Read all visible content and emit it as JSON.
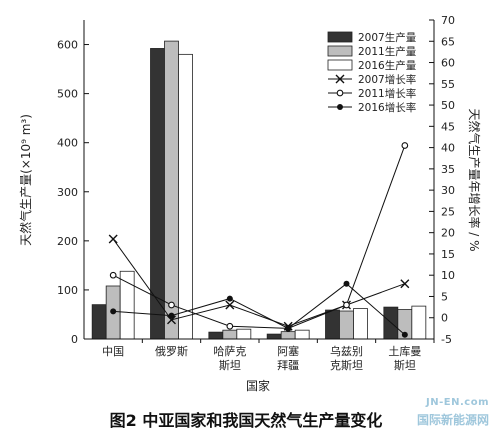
{
  "caption": "图2  中亚国家和我国天然气生产量变化",
  "watermark": {
    "top": "JN-EN.com",
    "bottom": "国际新能源网"
  },
  "colors": {
    "bar2007": "#333333",
    "bar2011": "#bdbdbd",
    "bar2016": "#ffffff",
    "axis": "#111111",
    "line": "#111111"
  },
  "chart_data": {
    "type": "bar",
    "categories": [
      "中国",
      "俄罗斯",
      "哈萨克\n斯坦",
      "阿塞\n拜疆",
      "乌兹别\n克斯坦",
      "土库曼\n斯坦"
    ],
    "xlabel": "国家",
    "ylabel": "天然气生产量(×10⁹ m³)",
    "ylabel_right": "天然气生产量年增长率 / %",
    "ylim": [
      0,
      650
    ],
    "yticks": [
      0,
      100,
      200,
      300,
      400,
      500,
      600
    ],
    "ylim_right": [
      -5,
      70
    ],
    "yticks_right": [
      -5,
      0,
      5,
      10,
      15,
      20,
      25,
      30,
      35,
      40,
      45,
      50,
      55,
      60,
      65,
      70
    ],
    "series": [
      {
        "name": "2007生产量",
        "kind": "bar",
        "color": "#333333",
        "values": [
          70,
          592,
          14,
          10,
          59,
          65
        ]
      },
      {
        "name": "2011生产量",
        "kind": "bar",
        "color": "#bdbdbd",
        "values": [
          108,
          607,
          18,
          15,
          57,
          60
        ]
      },
      {
        "name": "2016生产量",
        "kind": "bar",
        "color": "#ffffff",
        "values": [
          138,
          580,
          20,
          18,
          62,
          67
        ]
      },
      {
        "name": "2007增长率",
        "kind": "line",
        "marker": "x",
        "axis": "right",
        "values": [
          18.5,
          -0.5,
          3,
          -2,
          3,
          8
        ]
      },
      {
        "name": "2011增长率",
        "kind": "line",
        "marker": "open-circle",
        "axis": "right",
        "values": [
          10,
          3,
          -2,
          -2.5,
          3,
          40.5
        ]
      },
      {
        "name": "2016增长率",
        "kind": "line",
        "marker": "filled-circle",
        "axis": "right",
        "values": [
          1.5,
          0.5,
          4.5,
          -2.5,
          8,
          -4
        ]
      }
    ],
    "legend_position": "top-right",
    "grid": false
  }
}
